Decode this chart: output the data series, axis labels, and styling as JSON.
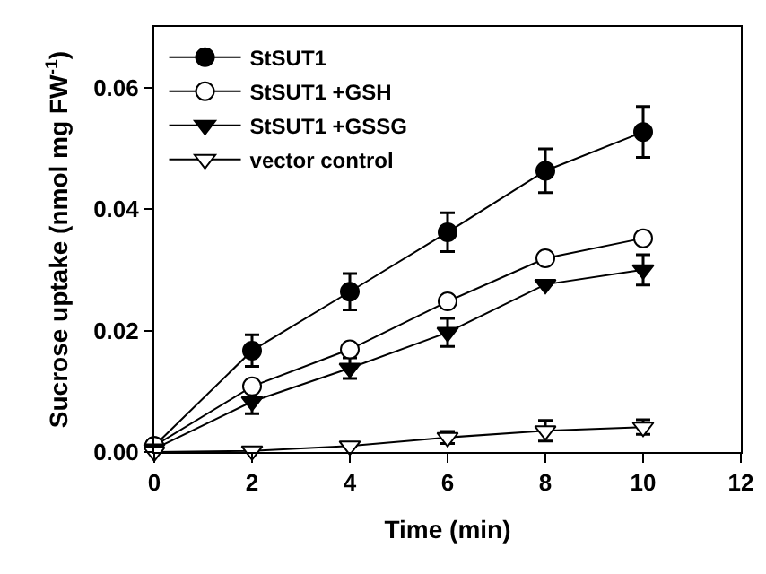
{
  "chart_data": {
    "type": "line",
    "xlabel": "Time (min)",
    "ylabel": "Sucrose uptake (nmol mg FW$^{-1}$)",
    "x": [
      0,
      2,
      4,
      6,
      8,
      10
    ],
    "series": [
      {
        "name": "StSUT1",
        "color": "#000000",
        "marker": "circle",
        "values": [
          0.001,
          0.0167,
          0.0264,
          0.0362,
          0.0463,
          0.0527
        ],
        "errors": [
          null,
          0.0026,
          0.003,
          0.0032,
          0.0036,
          0.0042
        ]
      },
      {
        "name": "StSUT1 +GSH",
        "color": "#ffffff",
        "marker": "circle",
        "values": [
          0.001,
          0.0108,
          0.0169,
          0.0248,
          0.0319,
          0.0352
        ]
      },
      {
        "name": "StSUT1 +GSSG",
        "color": "#000000",
        "marker": "triangle",
        "values": [
          0.0005,
          0.0083,
          0.0138,
          0.0197,
          0.0276,
          0.03
        ],
        "errors": [
          null,
          0.002,
          0.0017,
          0.0023,
          null,
          0.0025
        ]
      },
      {
        "name": "vector control",
        "color": "#ffffff",
        "marker": "triangle",
        "values": [
          0,
          0.0002,
          0.001,
          0.0024,
          0.0035,
          0.0041
        ],
        "errors": [
          null,
          null,
          null,
          0.001,
          0.0017,
          0.0012
        ]
      }
    ],
    "xlim": [
      0,
      12
    ],
    "xticks": [
      0,
      2,
      4,
      6,
      8,
      10,
      12
    ],
    "ylim": [
      0,
      0.07
    ],
    "yticks": [
      {
        "value": 0,
        "label": "0.00"
      },
      {
        "value": 0.02,
        "label": "0.02"
      },
      {
        "value": 0.04,
        "label": "0.04"
      },
      {
        "value": 0.06,
        "label": "0.06"
      }
    ],
    "grid": false,
    "legend": "top left",
    "line_style": "solid"
  }
}
